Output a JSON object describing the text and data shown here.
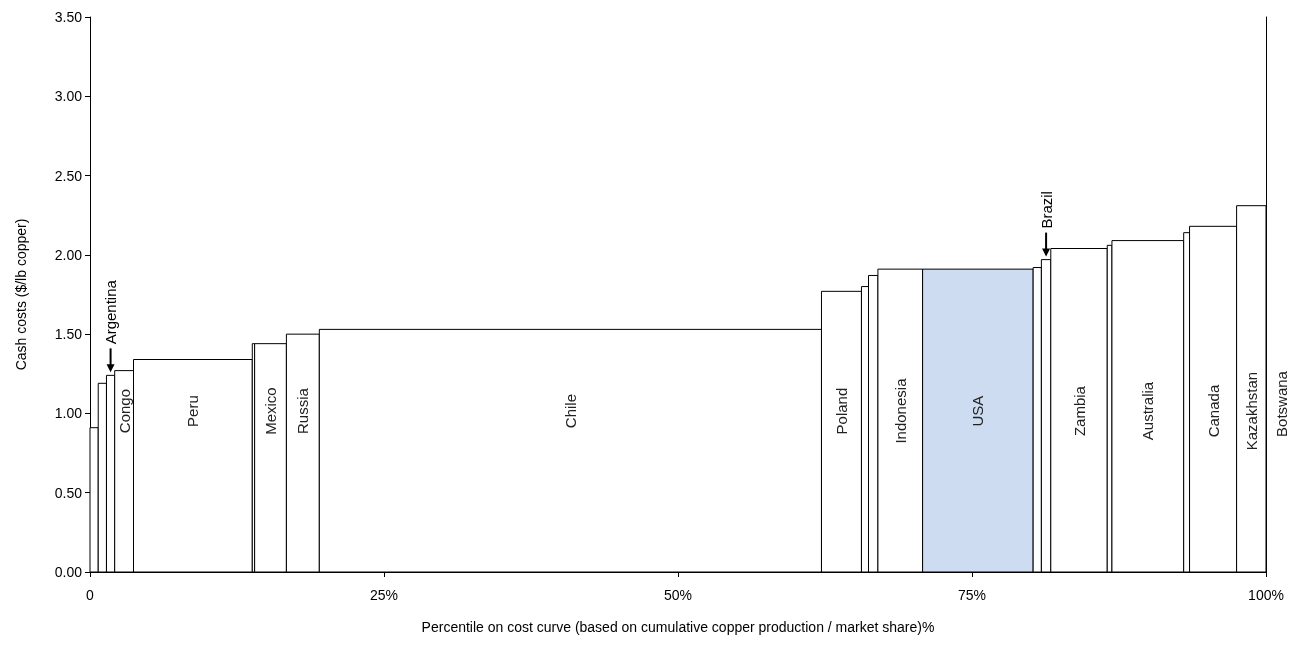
{
  "chart_data": {
    "type": "histogram",
    "xlabel": "Percentile on cost curve (based on cumulative copper production / market share)%",
    "ylabel": "Cash costs ($/lb copper)",
    "bins": [
      0,
      0.7,
      1.4,
      2.1,
      3.7,
      13.8,
      14.0,
      16.7,
      19.5,
      62.2,
      65.6,
      66.2,
      67.0,
      70.8,
      80.2,
      80.9,
      81.7,
      86.5,
      86.9,
      93.0,
      93.5,
      97.5,
      100
    ],
    "values": [
      0.91,
      1.19,
      1.24,
      1.27,
      1.34,
      1.44,
      1.44,
      1.5,
      1.53,
      1.77,
      1.8,
      1.87,
      1.91,
      1.91,
      1.92,
      1.97,
      2.04,
      2.06,
      2.09,
      2.14,
      2.18,
      2.31
    ],
    "categories": [
      null,
      null,
      null,
      "Congo",
      "Peru",
      null,
      "Mexico",
      "Russia",
      "Chile",
      "Poland",
      null,
      null,
      "Indonesia",
      "USA",
      null,
      null,
      "Zambia",
      null,
      "Australia",
      null,
      "Canada",
      "Kazakhstan"
    ],
    "colors": [
      "#ffffff",
      "#ffffff",
      "#ffffff",
      "#ffffff",
      "#ffffff",
      "#ffffff",
      "#ffffff",
      "#ffffff",
      "#ffffff",
      "#ffffff",
      "#ffffff",
      "#ffffff",
      "#ffffff",
      "#cddcf0",
      "#ffffff",
      "#ffffff",
      "#ffffff",
      "#ffffff",
      "#ffffff",
      "#ffffff",
      "#ffffff",
      "#ffffff"
    ],
    "annotations": [
      {
        "text": "Argentina",
        "x": 1.75,
        "y": 1.24
      },
      {
        "text": "Brazil",
        "x": 81.3,
        "y": 1.97
      },
      "Botswana"
    ],
    "xlim": [
      0,
      100
    ],
    "xticks": [
      0,
      {
        "value": 25,
        "label": "25%"
      },
      {
        "value": 50,
        "label": "50%"
      },
      {
        "value": 75,
        "label": "75%"
      },
      {
        "value": 100,
        "label": "100%"
      }
    ],
    "ylim": [
      0,
      3.5
    ],
    "yticks": [
      {
        "value": 0,
        "label": "0.00"
      },
      {
        "value": 0.5,
        "label": "0.50"
      },
      {
        "value": 1,
        "label": "1.00"
      },
      {
        "value": 1.5,
        "label": "1.50"
      },
      {
        "value": 2,
        "label": "2.00"
      },
      {
        "value": 2.5,
        "label": "2.50"
      },
      {
        "value": 3,
        "label": "3.00"
      },
      {
        "value": 3.5,
        "label": "3.50"
      }
    ],
    "grid": false
  }
}
